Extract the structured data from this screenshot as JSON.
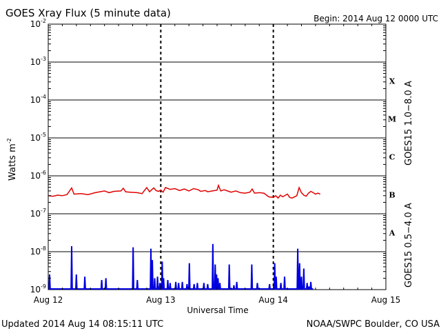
{
  "chart_data": {
    "type": "line",
    "title": "GOES Xray Flux (5 minute data)",
    "begin_label": "Begin:  2014 Aug 12 0000 UTC",
    "ylabel": {
      "base": "Watts m",
      "exponent": "-2"
    },
    "xlabel": "Universal Time",
    "footer_left": "Updated 2014 Aug 14 08:15:11 UTC",
    "footer_right": "NOAA/SWPC Boulder, CO USA",
    "x_range_hours": [
      0,
      72
    ],
    "x_ticks": [
      {
        "hours": 0,
        "label": "Aug 12"
      },
      {
        "hours": 24,
        "label": "Aug 13"
      },
      {
        "hours": 48,
        "label": "Aug 14"
      },
      {
        "hours": 72,
        "label": "Aug 15"
      }
    ],
    "y_scale": "log",
    "ylim": [
      1e-09,
      0.01
    ],
    "y_ticks": [
      {
        "value": 0.01,
        "base": "10",
        "exp": "-2"
      },
      {
        "value": 0.001,
        "base": "10",
        "exp": "-3"
      },
      {
        "value": 0.0001,
        "base": "10",
        "exp": "-4"
      },
      {
        "value": 1e-05,
        "base": "10",
        "exp": "-5"
      },
      {
        "value": 1e-06,
        "base": "10",
        "exp": "-6"
      },
      {
        "value": 1e-07,
        "base": "10",
        "exp": "-7"
      },
      {
        "value": 1e-08,
        "base": "10",
        "exp": "-8"
      },
      {
        "value": 1e-09,
        "base": "10",
        "exp": "-9"
      }
    ],
    "flare_classes": [
      {
        "label": "X",
        "value": 0.000316
      },
      {
        "label": "M",
        "value": 3.16e-05
      },
      {
        "label": "C",
        "value": 3.16e-06
      },
      {
        "label": "B",
        "value": 3.16e-07
      },
      {
        "label": "A",
        "value": 3.16e-08
      }
    ],
    "series": [
      {
        "name": "GOES15 1.0−8.0 A",
        "color": "#e00000",
        "points": [
          [
            0.0,
            3e-07
          ],
          [
            1.0,
            2.9e-07
          ],
          [
            2.0,
            3.1e-07
          ],
          [
            3.0,
            3e-07
          ],
          [
            4.0,
            3.2e-07
          ],
          [
            5.0,
            4.8e-07
          ],
          [
            5.5,
            3.3e-07
          ],
          [
            7.0,
            3.4e-07
          ],
          [
            8.5,
            3.2e-07
          ],
          [
            10.0,
            3.6e-07
          ],
          [
            12.0,
            4e-07
          ],
          [
            13.0,
            3.6e-07
          ],
          [
            14.0,
            3.9e-07
          ],
          [
            15.5,
            4e-07
          ],
          [
            16.0,
            4.7e-07
          ],
          [
            16.5,
            3.8e-07
          ],
          [
            17.5,
            3.7e-07
          ],
          [
            19.0,
            3.6e-07
          ],
          [
            20.0,
            3.4e-07
          ],
          [
            21.0,
            4.9e-07
          ],
          [
            21.6,
            3.8e-07
          ],
          [
            22.5,
            4.8e-07
          ],
          [
            23.0,
            4.1e-07
          ],
          [
            23.5,
            3.9e-07
          ],
          [
            24.0,
            4.2e-07
          ],
          [
            24.5,
            3.7e-07
          ],
          [
            25.0,
            4.9e-07
          ],
          [
            26.0,
            4.4e-07
          ],
          [
            27.0,
            4.6e-07
          ],
          [
            28.0,
            4.1e-07
          ],
          [
            29.0,
            4.5e-07
          ],
          [
            30.0,
            4e-07
          ],
          [
            31.0,
            4.6e-07
          ],
          [
            32.0,
            4.3e-07
          ],
          [
            32.5,
            3.9e-07
          ],
          [
            33.5,
            4.1e-07
          ],
          [
            34.0,
            3.8e-07
          ],
          [
            35.0,
            4e-07
          ],
          [
            36.0,
            4.2e-07
          ],
          [
            36.3,
            5.6e-07
          ],
          [
            36.8,
            4e-07
          ],
          [
            37.5,
            4.3e-07
          ],
          [
            38.5,
            3.9e-07
          ],
          [
            39.0,
            3.7e-07
          ],
          [
            40.0,
            4e-07
          ],
          [
            41.0,
            3.6e-07
          ],
          [
            42.0,
            3.5e-07
          ],
          [
            43.0,
            3.7e-07
          ],
          [
            43.5,
            4.5e-07
          ],
          [
            44.0,
            3.5e-07
          ],
          [
            45.0,
            3.6e-07
          ],
          [
            46.0,
            3.5e-07
          ],
          [
            47.0,
            2.8e-07
          ],
          [
            48.0,
            2.7e-07
          ],
          [
            48.5,
            3e-07
          ],
          [
            49.0,
            2.6e-07
          ],
          [
            49.5,
            3.1e-07
          ],
          [
            50.0,
            2.8e-07
          ],
          [
            51.0,
            3.3e-07
          ],
          [
            51.5,
            2.7e-07
          ],
          [
            52.0,
            2.6e-07
          ],
          [
            53.0,
            3e-07
          ],
          [
            53.5,
            4.9e-07
          ],
          [
            54.0,
            3.6e-07
          ],
          [
            54.5,
            3.1e-07
          ],
          [
            55.0,
            2.9e-07
          ],
          [
            55.5,
            3.5e-07
          ],
          [
            56.0,
            3.9e-07
          ],
          [
            56.5,
            3.6e-07
          ],
          [
            57.0,
            3.3e-07
          ],
          [
            57.5,
            3.5e-07
          ],
          [
            58.0,
            3.3e-07
          ]
        ]
      },
      {
        "name": "GOES15 0.5−4.0 A",
        "color": "#0000e0",
        "baseline": 6e-10,
        "spikes": [
          [
            0.3,
            2.5e-09
          ],
          [
            5.0,
            1.4e-08
          ],
          [
            6.0,
            2.5e-09
          ],
          [
            7.8,
            2.2e-09
          ],
          [
            11.4,
            1.8e-09
          ],
          [
            12.3,
            2e-09
          ],
          [
            18.1,
            1.3e-08
          ],
          [
            19.0,
            1.8e-09
          ],
          [
            21.9,
            1.2e-08
          ],
          [
            22.2,
            6e-09
          ],
          [
            22.7,
            2e-09
          ],
          [
            23.3,
            2.2e-09
          ],
          [
            23.8,
            1.5e-09
          ],
          [
            24.3,
            5.5e-09
          ],
          [
            24.6,
            2e-09
          ],
          [
            25.5,
            1.8e-09
          ],
          [
            26.0,
            1.5e-09
          ],
          [
            27.2,
            1.6e-09
          ],
          [
            27.8,
            1.5e-09
          ],
          [
            28.6,
            1.6e-09
          ],
          [
            29.6,
            1.4e-09
          ],
          [
            30.1,
            5e-09
          ],
          [
            31.1,
            1.4e-09
          ],
          [
            31.8,
            1.5e-09
          ],
          [
            33.2,
            1.5e-09
          ],
          [
            34.0,
            1.4e-09
          ],
          [
            35.1,
            1.6e-08
          ],
          [
            35.6,
            4.6e-09
          ],
          [
            35.9,
            2.5e-09
          ],
          [
            36.2,
            2e-09
          ],
          [
            36.6,
            1.5e-09
          ],
          [
            38.6,
            4.6e-09
          ],
          [
            39.6,
            1.3e-09
          ],
          [
            40.2,
            1.6e-09
          ],
          [
            43.4,
            4.6e-09
          ],
          [
            44.6,
            1.5e-09
          ],
          [
            47.2,
            1.4e-09
          ],
          [
            48.3,
            5e-09
          ],
          [
            48.6,
            2.2e-09
          ],
          [
            49.6,
            1.5e-09
          ],
          [
            50.4,
            2.2e-09
          ],
          [
            53.2,
            1.2e-08
          ],
          [
            53.6,
            5e-09
          ],
          [
            54.0,
            2.2e-09
          ],
          [
            54.5,
            3.6e-09
          ],
          [
            55.2,
            1.5e-09
          ],
          [
            55.6,
            1.2e-09
          ],
          [
            56.0,
            1.6e-09
          ]
        ]
      }
    ]
  }
}
